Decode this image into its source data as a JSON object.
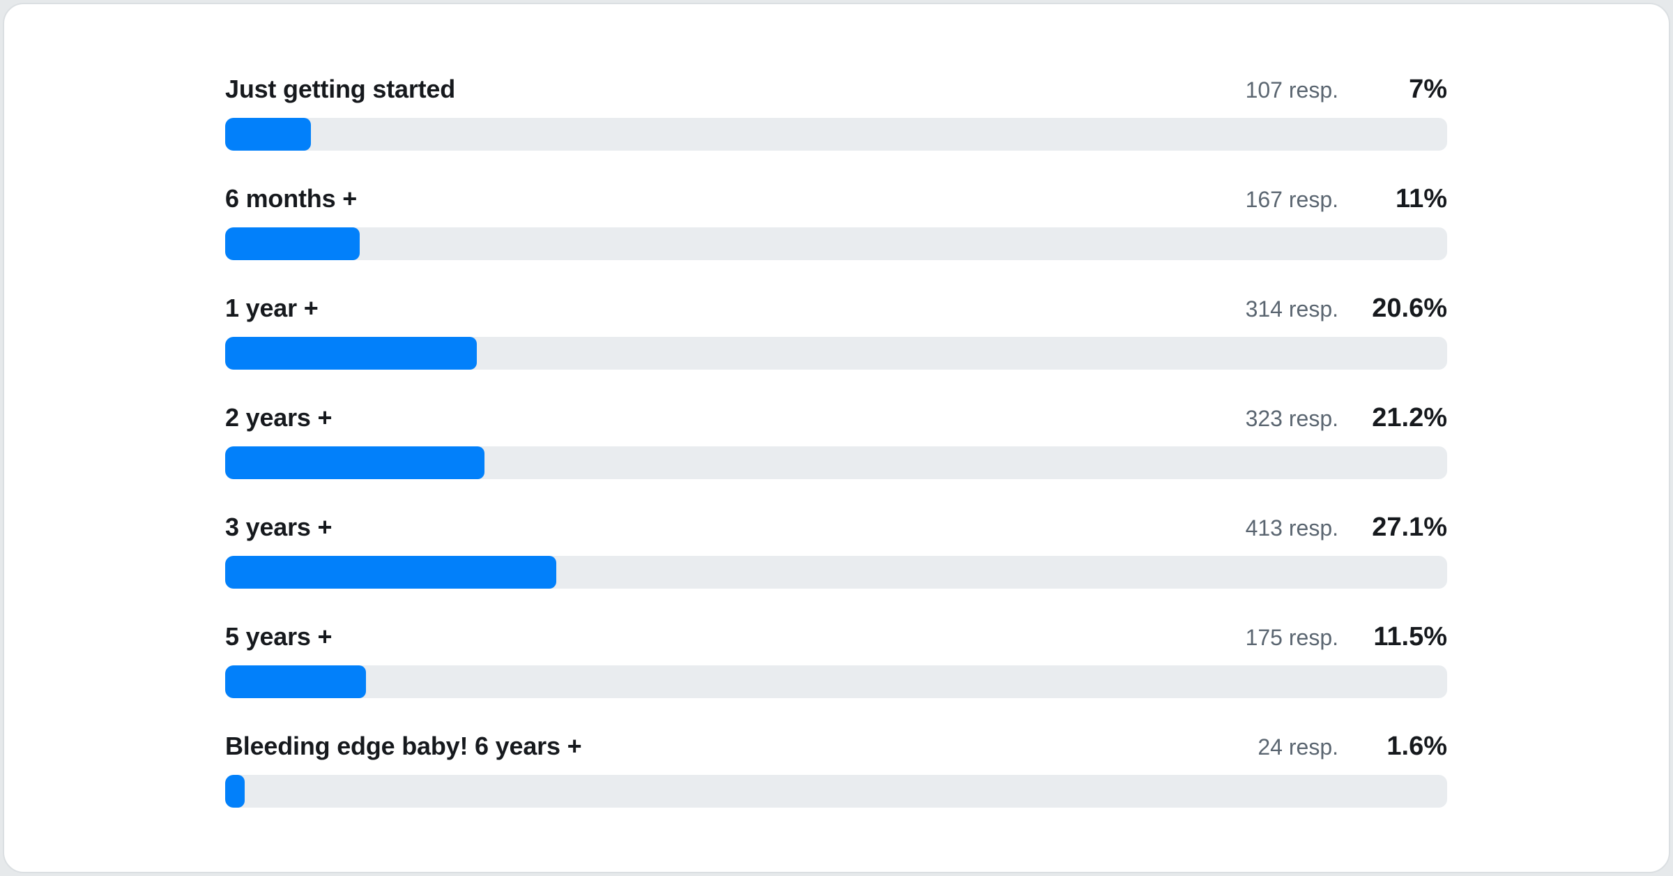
{
  "colors": {
    "bar_fill": "#0280fa",
    "bar_track": "#e9ecef",
    "label_text": "#16191d",
    "responses_text": "#5a6570",
    "percent_text": "#16191d",
    "card_background": "#ffffff",
    "page_background": "#e6e9eb"
  },
  "chart_data": {
    "type": "bar",
    "orientation": "horizontal",
    "title": "",
    "xlabel": "",
    "ylabel": "",
    "xlim": [
      0,
      100
    ],
    "grid": false,
    "legend": false,
    "categories": [
      "Just getting started",
      "6 months +",
      "1 year +",
      "2 years +",
      "3 years +",
      "5 years +",
      "Bleeding edge baby! 6 years +"
    ],
    "series": [
      {
        "name": "Respondents",
        "values": [
          107,
          167,
          314,
          323,
          413,
          175,
          24
        ]
      },
      {
        "name": "Percent",
        "values": [
          7,
          11,
          20.6,
          21.2,
          27.1,
          11.5,
          1.6
        ]
      }
    ],
    "value_labels": [
      "7%",
      "11%",
      "20.6%",
      "21.2%",
      "27.1%",
      "11.5%",
      "1.6%"
    ],
    "respondent_labels": [
      "107 resp.",
      "167 resp.",
      "314 resp.",
      "323 resp.",
      "413 resp.",
      "175 resp.",
      "24 resp."
    ]
  },
  "rows": [
    {
      "label": "Just getting started",
      "responses": "107 resp.",
      "percent": "7%",
      "percent_value": 7
    },
    {
      "label": "6 months +",
      "responses": "167 resp.",
      "percent": "11%",
      "percent_value": 11
    },
    {
      "label": "1 year +",
      "responses": "314 resp.",
      "percent": "20.6%",
      "percent_value": 20.6
    },
    {
      "label": "2 years +",
      "responses": "323 resp.",
      "percent": "21.2%",
      "percent_value": 21.2
    },
    {
      "label": "3 years +",
      "responses": "413 resp.",
      "percent": "27.1%",
      "percent_value": 27.1
    },
    {
      "label": "5 years +",
      "responses": "175 resp.",
      "percent": "11.5%",
      "percent_value": 11.5
    },
    {
      "label": "Bleeding edge baby! 6 years +",
      "responses": "24 resp.",
      "percent": "1.6%",
      "percent_value": 1.6
    }
  ]
}
